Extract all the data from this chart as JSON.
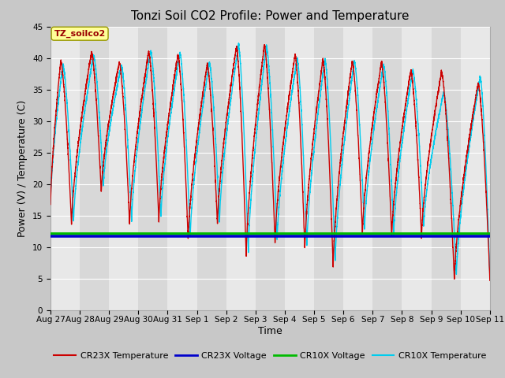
{
  "title": "Tonzi Soil CO2 Profile: Power and Temperature",
  "ylabel": "Power (V) / Temperature (C)",
  "xlabel": "Time",
  "ylim": [
    0,
    45
  ],
  "yticks": [
    0,
    5,
    10,
    15,
    20,
    25,
    30,
    35,
    40,
    45
  ],
  "xtick_labels": [
    "Aug 27",
    "Aug 28",
    "Aug 29",
    "Aug 30",
    "Aug 31",
    "Sep 1",
    "Sep 2",
    "Sep 3",
    "Sep 4",
    "Sep 5",
    "Sep 6",
    "Sep 7",
    "Sep 8",
    "Sep 9",
    "Sep 10",
    "Sep 11"
  ],
  "annotation_text": "TZ_soilco2",
  "cr23x_voltage": 11.7,
  "cr10x_voltage": 12.1,
  "line_colors": {
    "cr23x_temp": "#cc0000",
    "cr23x_volt": "#0000cc",
    "cr10x_volt": "#00bb00",
    "cr10x_temp": "#00ccee"
  },
  "legend_labels": [
    "CR23X Temperature",
    "CR23X Voltage",
    "CR10X Voltage",
    "CR10X Temperature"
  ],
  "legend_colors": [
    "#cc0000",
    "#0000cc",
    "#00bb00",
    "#00ccee"
  ],
  "title_fontsize": 11,
  "axis_fontsize": 9,
  "tick_fontsize": 7.5,
  "stripe_colors": [
    "#e8e8e8",
    "#d8d8d8"
  ],
  "fig_bg": "#c8c8c8",
  "plot_bg": "#e8e8e8"
}
